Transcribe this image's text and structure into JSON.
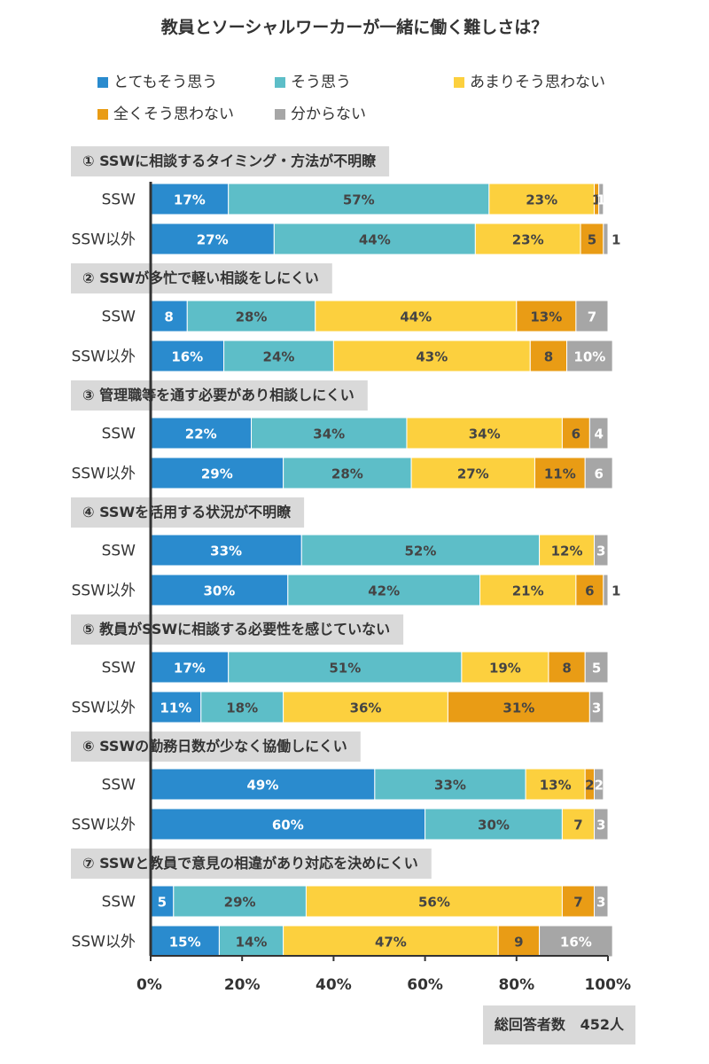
{
  "chart_data": {
    "type": "bar",
    "orientation": "horizontal-stacked-100",
    "title": "教員とソーシャルワーカーが一緒に働く難しさは？",
    "xlim": [
      0,
      100
    ],
    "x_ticks": [
      "0%",
      "20%",
      "40%",
      "60%",
      "80%",
      "100%"
    ],
    "legend_position": "top",
    "series": [
      {
        "name": "とてもそう思う",
        "color": "#2a8bce"
      },
      {
        "name": "そう思う",
        "color": "#5dbec8"
      },
      {
        "name": "あまりそう思わない",
        "color": "#fcd03e"
      },
      {
        "name": "全くそう思わない",
        "color": "#e99c15"
      },
      {
        "name": "分からない",
        "color": "#a6a6a6"
      }
    ],
    "groups": [
      {
        "label": "① SSWに相談するタイミング・方法が不明瞭",
        "rows": [
          {
            "name": "SSW",
            "values": [
              17,
              57,
              23,
              1,
              1
            ],
            "labels": [
              "17%",
              "57%",
              "23%",
              "1",
              "1"
            ]
          },
          {
            "name": "SSW以外",
            "values": [
              27,
              44,
              23,
              5,
              1
            ],
            "labels": [
              "27%",
              "44%",
              "23%",
              "5",
              "1"
            ]
          }
        ]
      },
      {
        "label": "② SSWが多忙で軽い相談をしにくい",
        "rows": [
          {
            "name": "SSW",
            "values": [
              8,
              28,
              44,
              13,
              7
            ],
            "labels": [
              "8",
              "28%",
              "44%",
              "13%",
              "7"
            ]
          },
          {
            "name": "SSW以外",
            "values": [
              16,
              24,
              43,
              8,
              10
            ],
            "labels": [
              "16%",
              "24%",
              "43%",
              "8",
              "10%"
            ]
          }
        ]
      },
      {
        "label": "③ 管理職等を通す必要があり相談しにくい",
        "rows": [
          {
            "name": "SSW",
            "values": [
              22,
              34,
              34,
              6,
              4
            ],
            "labels": [
              "22%",
              "34%",
              "34%",
              "6",
              "4"
            ]
          },
          {
            "name": "SSW以外",
            "values": [
              29,
              28,
              27,
              11,
              6
            ],
            "labels": [
              "29%",
              "28%",
              "27%",
              "11%",
              "6"
            ]
          }
        ]
      },
      {
        "label": "④ SSWを活用する状況が不明瞭",
        "rows": [
          {
            "name": "SSW",
            "values": [
              33,
              52,
              12,
              0,
              3
            ],
            "labels": [
              "33%",
              "52%",
              "12%",
              "",
              "3"
            ]
          },
          {
            "name": "SSW以外",
            "values": [
              30,
              42,
              21,
              6,
              1
            ],
            "labels": [
              "30%",
              "42%",
              "21%",
              "6",
              "1"
            ]
          }
        ]
      },
      {
        "label": "⑤ 教員がSSWに相談する必要性を感じていない",
        "rows": [
          {
            "name": "SSW",
            "values": [
              17,
              51,
              19,
              8,
              5
            ],
            "labels": [
              "17%",
              "51%",
              "19%",
              "8",
              "5"
            ]
          },
          {
            "name": "SSW以外",
            "values": [
              11,
              18,
              36,
              31,
              3
            ],
            "labels": [
              "11%",
              "18%",
              "36%",
              "31%",
              "3"
            ]
          }
        ]
      },
      {
        "label": "⑥ SSWの勤務日数が少なく協働しにくい",
        "rows": [
          {
            "name": "SSW",
            "values": [
              49,
              33,
              13,
              2,
              2
            ],
            "labels": [
              "49%",
              "33%",
              "13%",
              "2",
              "2"
            ]
          },
          {
            "name": "SSW以外",
            "values": [
              60,
              30,
              7,
              0,
              3
            ],
            "labels": [
              "60%",
              "30%",
              "7",
              "",
              "3"
            ]
          }
        ]
      },
      {
        "label": "⑦ SSWと教員で意見の相違があり対応を決めにくい",
        "rows": [
          {
            "name": "SSW",
            "values": [
              5,
              29,
              56,
              7,
              3
            ],
            "labels": [
              "5",
              "29%",
              "56%",
              "7",
              "3"
            ]
          },
          {
            "name": "SSW以外",
            "values": [
              15,
              14,
              47,
              9,
              16
            ],
            "labels": [
              "15%",
              "14%",
              "47%",
              "9",
              "16%"
            ]
          }
        ]
      }
    ]
  },
  "footer": {
    "respondents_label": "総回答者数",
    "respondents_value": "452人"
  }
}
